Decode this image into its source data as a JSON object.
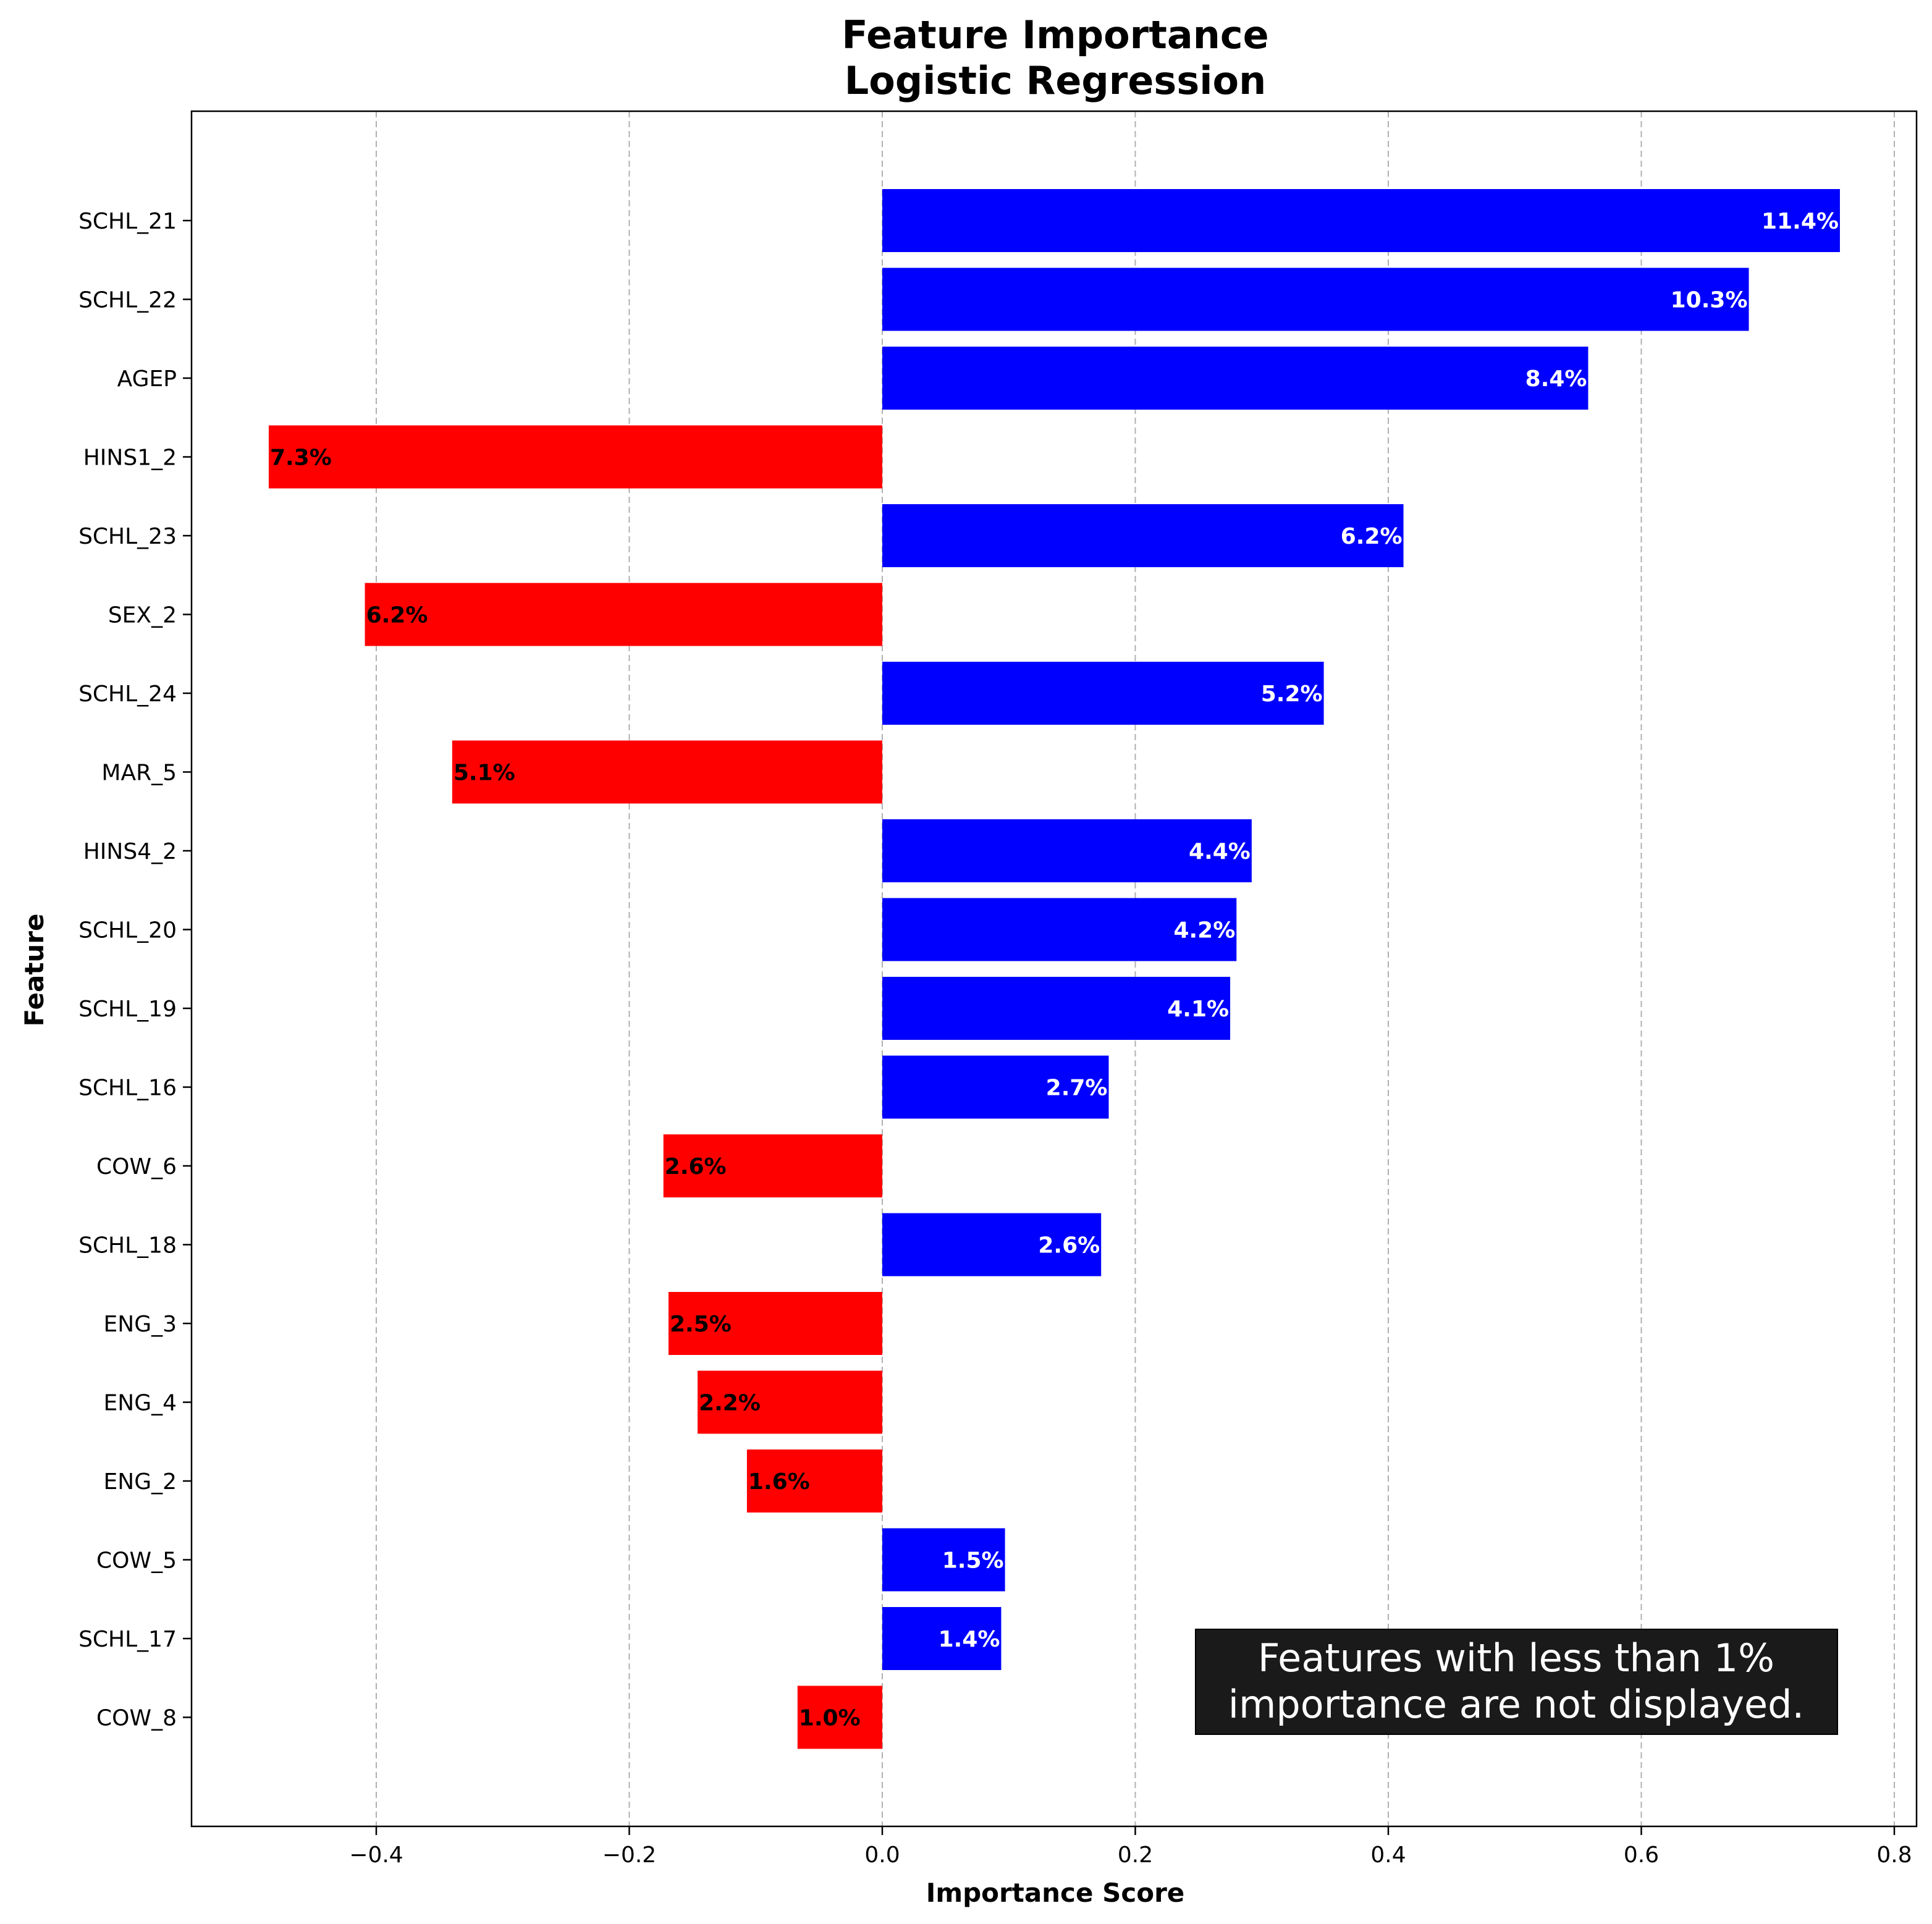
{
  "chart_data": {
    "type": "bar",
    "orientation": "horizontal",
    "title": "Feature Importance",
    "subtitle": "Logistic Regression",
    "xlabel": "Importance Score",
    "ylabel": "Feature",
    "xlim": [
      -0.55,
      0.82
    ],
    "xticks": [
      -0.4,
      -0.2,
      0.0,
      0.2,
      0.4,
      0.6,
      0.8
    ],
    "xtick_labels": [
      "−0.4",
      "−0.2",
      "0.0",
      "0.2",
      "0.4",
      "0.6",
      "0.8"
    ],
    "grid": "x-dashed",
    "colors": {
      "positive": "#0000ff",
      "negative": "#ff0000",
      "positive_label": "#ffffff",
      "negative_label": "#000000",
      "note_bg": "#1a1a1a"
    },
    "bars": [
      {
        "feature": "SCHL_21",
        "value": 0.757,
        "label": "11.4%"
      },
      {
        "feature": "SCHL_22",
        "value": 0.685,
        "label": "10.3%"
      },
      {
        "feature": "AGEP",
        "value": 0.558,
        "label": "8.4%"
      },
      {
        "feature": "HINS1_2",
        "value": -0.485,
        "label": "7.3%"
      },
      {
        "feature": "SCHL_23",
        "value": 0.412,
        "label": "6.2%"
      },
      {
        "feature": "SEX_2",
        "value": -0.409,
        "label": "6.2%"
      },
      {
        "feature": "SCHL_24",
        "value": 0.349,
        "label": "5.2%"
      },
      {
        "feature": "MAR_5",
        "value": -0.34,
        "label": "5.1%"
      },
      {
        "feature": "HINS4_2",
        "value": 0.292,
        "label": "4.4%"
      },
      {
        "feature": "SCHL_20",
        "value": 0.28,
        "label": "4.2%"
      },
      {
        "feature": "SCHL_19",
        "value": 0.275,
        "label": "4.1%"
      },
      {
        "feature": "SCHL_16",
        "value": 0.179,
        "label": "2.7%"
      },
      {
        "feature": "COW_6",
        "value": -0.173,
        "label": "2.6%"
      },
      {
        "feature": "SCHL_18",
        "value": 0.173,
        "label": "2.6%"
      },
      {
        "feature": "ENG_3",
        "value": -0.169,
        "label": "2.5%"
      },
      {
        "feature": "ENG_4",
        "value": -0.146,
        "label": "2.2%"
      },
      {
        "feature": "ENG_2",
        "value": -0.107,
        "label": "1.6%"
      },
      {
        "feature": "COW_5",
        "value": 0.097,
        "label": "1.5%"
      },
      {
        "feature": "SCHL_17",
        "value": 0.094,
        "label": "1.4%"
      },
      {
        "feature": "COW_8",
        "value": -0.067,
        "label": "1.0%"
      }
    ],
    "annotation": [
      "Features with less than 1%",
      "importance are not displayed."
    ]
  }
}
